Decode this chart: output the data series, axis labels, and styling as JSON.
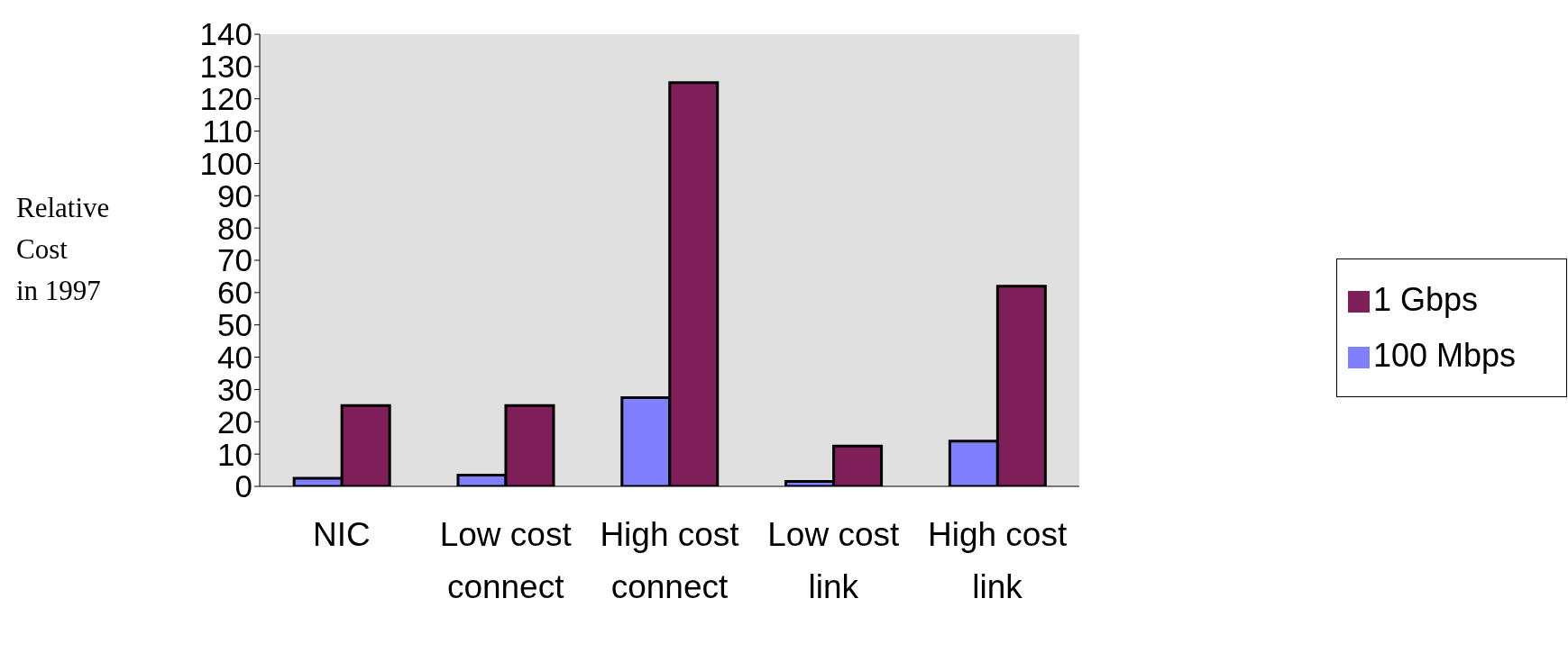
{
  "chart_data": {
    "type": "bar",
    "ylabel": "Relative\nCost\nin 1997",
    "categories": [
      "NIC",
      "Low cost connect",
      "High cost connect",
      "Low cost link",
      "High cost link"
    ],
    "series": [
      {
        "name": "100 Mbps",
        "color": "#8080ff",
        "values": [
          2.5,
          3.5,
          27.5,
          1.5,
          14
        ]
      },
      {
        "name": "1 Gbps",
        "color": "#7f1f5a",
        "values": [
          25,
          25,
          125,
          12.5,
          62
        ]
      }
    ],
    "ylim": [
      0,
      140
    ],
    "yticks": [
      0,
      10,
      20,
      30,
      40,
      50,
      60,
      70,
      80,
      90,
      100,
      110,
      120,
      130,
      140
    ],
    "grid": false,
    "legend": "right"
  }
}
